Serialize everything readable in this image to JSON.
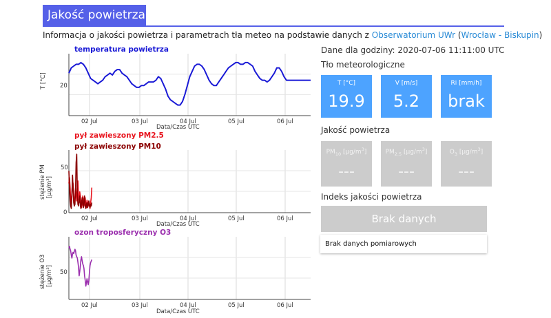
{
  "page": {
    "title": "Jakość powietrza",
    "info_prefix": "Informacja o jakości powietrza i parametrach tła meteo na podstawie danych z ",
    "info_link": "Obserwatorium UWr",
    "info_paren_open": " (",
    "info_location_link": "Wrocław - Biskupin",
    "info_paren_close": ")"
  },
  "right_panel": {
    "data_time": "Dane dla godziny: 2020-07-06 11:11:00 UTC",
    "meteo_heading": "Tło meteorologiczne",
    "meteo_tiles": [
      {
        "label": "T [°C]",
        "value": "19.9"
      },
      {
        "label": "V [m/s]",
        "value": "5.2"
      },
      {
        "label": "Ri [mm/h]",
        "value": "brak"
      }
    ],
    "air_heading": "Jakość powietrza",
    "air_tiles": [
      {
        "label_main": "PM",
        "label_sub": "10",
        "label_rest": " [μg/m",
        "label_sup": "3",
        "label_end": "]",
        "value": "---"
      },
      {
        "label_main": "PM",
        "label_sub": "2.5",
        "label_rest": " [μg/m",
        "label_sup": "3",
        "label_end": "]",
        "value": "---"
      },
      {
        "label_main": "O",
        "label_sub": "3",
        "label_rest": " [μg/m",
        "label_sup": "3",
        "label_end": "]",
        "value": "---"
      }
    ],
    "index_heading": "Indeks jakości powietrza",
    "index_button": "Brak danych",
    "index_message": "Brak danych pomiarowych"
  },
  "colors": {
    "accent": "#5560e8",
    "tile_blue": "#4da3ff",
    "tile_gray": "#cccccc",
    "temp_line": "#1a1ad6",
    "pm25_line": "#e8141e",
    "pm10_line": "#8b0000",
    "o3_line": "#9b2fae",
    "link": "#2a8bd6"
  },
  "chart_data": [
    {
      "type": "line",
      "series": [
        {
          "name": "temperatura powietrza",
          "color": "#1a1ad6",
          "x": [
            0,
            0.05,
            0.1,
            0.15,
            0.2,
            0.25,
            0.3,
            0.35,
            0.4,
            0.45,
            0.5,
            0.55,
            0.6,
            0.65,
            0.7,
            0.75,
            0.8,
            0.85,
            0.9,
            0.95,
            1.0,
            1.05,
            1.1,
            1.15,
            1.2,
            1.25,
            1.3,
            1.35,
            1.4,
            1.45,
            1.5,
            1.55,
            1.6,
            1.65,
            1.7,
            1.75,
            1.8,
            1.85,
            1.9,
            1.95,
            2.0,
            2.05,
            2.1,
            2.15,
            2.2,
            2.25,
            2.3,
            2.35,
            2.4,
            2.45,
            2.5,
            2.55,
            2.6,
            2.65,
            2.7,
            2.75,
            2.8,
            2.85,
            2.9,
            2.95,
            3.0,
            3.05,
            3.1,
            3.15,
            3.2,
            3.25,
            3.3,
            3.35,
            3.4,
            3.45,
            3.5,
            3.55,
            3.6,
            3.65,
            3.7,
            3.75,
            3.8,
            3.85,
            3.9,
            3.95,
            4.0,
            4.05,
            4.1,
            4.15,
            4.2,
            4.25,
            4.3,
            4.35,
            4.4,
            4.45,
            4.5,
            4.55,
            4.6,
            4.65,
            4.7,
            4.75,
            4.8,
            4.85,
            4.9,
            4.95,
            5.0
          ],
          "y": [
            24,
            27,
            28,
            29,
            29,
            30,
            29,
            27,
            24,
            21,
            20,
            19,
            18,
            19,
            20,
            22,
            23,
            24,
            23,
            25,
            26,
            26,
            24,
            23,
            22,
            20,
            18,
            17,
            16,
            16,
            17,
            17,
            18,
            19,
            19,
            19,
            20,
            22,
            21,
            18,
            15,
            11,
            9,
            8,
            7,
            6,
            6,
            8,
            12,
            17,
            22,
            25,
            28,
            29,
            29,
            28,
            26,
            23,
            20,
            18,
            17,
            17,
            19,
            21,
            23,
            25,
            27,
            28,
            29,
            30,
            30,
            29,
            29,
            30,
            30,
            29,
            28,
            25,
            23,
            21,
            20,
            20,
            19,
            20,
            22,
            24,
            27,
            27,
            25,
            22,
            20,
            20,
            20,
            20,
            20,
            20,
            20,
            20,
            20,
            20,
            20
          ]
        }
      ],
      "title": "temperatura powietrza",
      "xlabel": "Data/Czas UTC",
      "ylabel": "T [°C]",
      "x_ticks": [
        "02 Jul",
        "03 Jul",
        "04 Jul",
        "05 Jul",
        "06 Jul"
      ],
      "y_ticks": [
        "20"
      ],
      "grid": true
    },
    {
      "type": "line",
      "series": [
        {
          "name": "pył zawieszony PM2.5",
          "color": "#e8141e",
          "x": [
            0,
            0.05,
            0.1,
            0.15,
            0.2,
            0.25,
            0.3,
            0.35,
            0.4,
            0.45,
            0.5,
            0.55,
            0.6,
            0.65,
            0.7,
            0.75,
            0.8,
            0.85,
            0.9,
            0.95,
            1.0,
            1.05,
            1.1,
            1.15,
            1.2,
            1.25,
            1.3,
            1.35,
            1.4,
            1.45,
            1.5,
            1.55,
            1.6,
            1.65,
            1.7,
            1.75,
            1.8,
            1.85,
            1.9
          ],
          "y": [
            35,
            42,
            30,
            15,
            12,
            25,
            38,
            35,
            20,
            10,
            18,
            30,
            22,
            14,
            35,
            38,
            18,
            12,
            25,
            20,
            10,
            6,
            12,
            20,
            14,
            8,
            12,
            18,
            10,
            6,
            15,
            12,
            8,
            14,
            10,
            5,
            12,
            18,
            30
          ]
        },
        {
          "name": "pył zawieszony PM10",
          "color": "#8b0000",
          "x": [
            0,
            0.05,
            0.1,
            0.15,
            0.2,
            0.25,
            0.3,
            0.35,
            0.4,
            0.45,
            0.5,
            0.55,
            0.6,
            0.65,
            0.7,
            0.75,
            0.8,
            0.85,
            0.9,
            0.95,
            1.0,
            1.05,
            1.1,
            1.15,
            1.2,
            1.25,
            1.3,
            1.35,
            1.4,
            1.45,
            1.5,
            1.55,
            1.6,
            1.65,
            1.7,
            1.75,
            1.8,
            1.85,
            1.9
          ],
          "y": [
            50,
            30,
            15,
            8,
            5,
            20,
            45,
            30,
            12,
            8,
            10,
            28,
            60,
            70,
            20,
            10,
            8,
            15,
            20,
            8,
            5,
            12,
            18,
            10,
            6,
            14,
            20,
            8,
            5,
            10,
            12,
            6,
            10,
            14,
            8,
            6,
            10,
            8,
            12
          ]
        }
      ],
      "title": "pył zawieszony PM2.5 / pył zawieszony PM10",
      "xlabel": "Data/Czas UTC",
      "ylabel": "stężenie PM [μg/m³]",
      "x_ticks": [
        "02 Jul",
        "03 Jul",
        "04 Jul",
        "05 Jul",
        "06 Jul"
      ],
      "y_ticks": [
        "0",
        "50"
      ],
      "grid": true
    },
    {
      "type": "line",
      "series": [
        {
          "name": "ozon troposferyczny O3",
          "color": "#9b2fae",
          "x": [
            0,
            0.05,
            0.1,
            0.15,
            0.2,
            0.25,
            0.3,
            0.35,
            0.4,
            0.45,
            0.5,
            0.55,
            0.6,
            0.65,
            0.7,
            0.75,
            0.8,
            0.85,
            0.9,
            0.95,
            1.0,
            1.05,
            1.1,
            1.15,
            1.2,
            1.25,
            1.3,
            1.35,
            1.4,
            1.45,
            1.5,
            1.55,
            1.6,
            1.65,
            1.7,
            1.75,
            1.8,
            1.85,
            1.9
          ],
          "y": [
            80,
            82,
            78,
            76,
            70,
            66,
            72,
            74,
            72,
            75,
            78,
            76,
            70,
            68,
            66,
            60,
            54,
            42,
            48,
            56,
            64,
            68,
            62,
            58,
            56,
            52,
            42,
            36,
            28,
            32,
            38,
            34,
            30,
            36,
            46,
            56,
            60,
            62,
            64
          ]
        }
      ],
      "title": "ozon troposferyczny O3",
      "xlabel": "Data/Czas UTC",
      "ylabel": "stężenie O3 [μg/m³]",
      "x_ticks": [
        "02 Jul",
        "03 Jul",
        "04 Jul",
        "05 Jul",
        "06 Jul"
      ],
      "y_ticks": [
        "50"
      ],
      "grid": true
    }
  ],
  "chart_text": {
    "t_title": "temperatura powietrza",
    "t_ylabel": "T [°C]",
    "t_ytick": "20",
    "pm25_title": "pył zawieszony PM2.5",
    "pm10_title": "pył zawieszony PM10",
    "pm_ylabel1": "stężenie PM",
    "pm_ylabel2": "[μg/m³]",
    "pm_ytick0": "0",
    "pm_ytick50": "50",
    "o3_title": "ozon troposferyczny O3",
    "o3_ylabel1": "stężenie O3",
    "o3_ylabel2": "[μg/m³]",
    "o3_ytick": "50",
    "xlabel": "Data/Czas UTC",
    "x_ticks": [
      "02 Jul",
      "03 Jul",
      "04 Jul",
      "05 Jul",
      "06 Jul"
    ]
  }
}
